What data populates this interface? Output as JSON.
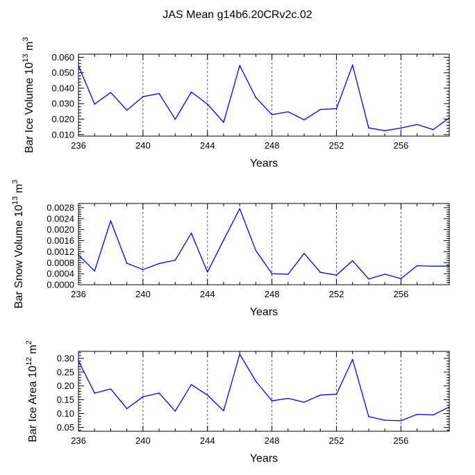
{
  "title": "JAS Mean g14b6.20CRv2c.02",
  "colors": {
    "line": "#0000ff",
    "axis": "#000000",
    "grid": "#555555"
  },
  "chart_data": [
    {
      "type": "line",
      "ylabel": "Bar Ice Volume 10",
      "ylabel_exp": "13",
      "ylabel_unit": " m",
      "ylabel_unit_exp": "3",
      "xlabel": "Years",
      "xlim": [
        236,
        259
      ],
      "ylim": [
        0.009,
        0.062
      ],
      "xticks": [
        "236",
        "240",
        "244",
        "248",
        "252",
        "256"
      ],
      "yticks": [
        "0.010",
        "0.020",
        "0.030",
        "0.040",
        "0.050",
        "0.060"
      ],
      "grid": "vertical dashed at major x ticks",
      "series": [
        {
          "name": "Bar Ice Volume",
          "x": [
            236,
            237,
            238,
            239,
            240,
            241,
            242,
            243,
            244,
            245,
            246,
            247,
            248,
            249,
            250,
            251,
            252,
            253,
            254,
            255,
            256,
            257,
            258,
            259
          ],
          "values": [
            0.0545,
            0.0297,
            0.0372,
            0.0258,
            0.0345,
            0.0366,
            0.0199,
            0.0375,
            0.0297,
            0.0179,
            0.0547,
            0.0339,
            0.0229,
            0.0247,
            0.0195,
            0.0262,
            0.0268,
            0.055,
            0.0143,
            0.0125,
            0.0142,
            0.0165,
            0.0132,
            0.0208
          ]
        }
      ]
    },
    {
      "type": "line",
      "ylabel": "Bar Snow Volume 10",
      "ylabel_exp": "13",
      "ylabel_unit": " m",
      "ylabel_unit_exp": "3",
      "xlabel": "Years",
      "xlim": [
        236,
        259
      ],
      "ylim": [
        0.0,
        0.00295
      ],
      "xticks": [
        "236",
        "240",
        "244",
        "248",
        "252",
        "256"
      ],
      "yticks": [
        "0.0000",
        "0.0004",
        "0.0008",
        "0.0012",
        "0.0016",
        "0.0020",
        "0.0024",
        "0.0028"
      ],
      "grid": "vertical dashed at major x ticks",
      "series": [
        {
          "name": "Bar Snow Volume",
          "x": [
            236,
            237,
            238,
            239,
            240,
            241,
            242,
            243,
            244,
            245,
            246,
            247,
            248,
            249,
            250,
            251,
            252,
            253,
            254,
            255,
            256,
            257,
            258,
            259
          ],
          "values": [
            0.00108,
            0.0005,
            0.00232,
            0.00078,
            0.00055,
            0.00077,
            0.00089,
            0.00187,
            0.00046,
            0.00162,
            0.00276,
            0.00124,
            0.0004,
            0.00038,
            0.00114,
            0.00045,
            0.00035,
            0.00087,
            0.00021,
            0.00038,
            0.00022,
            0.00069,
            0.00067,
            0.00068
          ]
        }
      ]
    },
    {
      "type": "line",
      "ylabel": "Bar Ice Area 10",
      "ylabel_exp": "12",
      "ylabel_unit": " m",
      "ylabel_unit_exp": "2",
      "xlabel": "Years",
      "xlim": [
        236,
        259
      ],
      "ylim": [
        0.036,
        0.325
      ],
      "xticks": [
        "236",
        "240",
        "244",
        "248",
        "252",
        "256"
      ],
      "yticks": [
        "0.05",
        "0.10",
        "0.15",
        "0.20",
        "0.25",
        "0.30"
      ],
      "grid": "vertical dashed at major x ticks",
      "series": [
        {
          "name": "Bar Ice Area",
          "x": [
            236,
            237,
            238,
            239,
            240,
            241,
            242,
            243,
            244,
            245,
            246,
            247,
            248,
            249,
            250,
            251,
            252,
            253,
            254,
            255,
            256,
            257,
            258,
            259
          ],
          "values": [
            0.291,
            0.174,
            0.189,
            0.118,
            0.161,
            0.174,
            0.109,
            0.205,
            0.167,
            0.11,
            0.315,
            0.217,
            0.146,
            0.155,
            0.141,
            0.167,
            0.17,
            0.296,
            0.089,
            0.076,
            0.074,
            0.097,
            0.095,
            0.124
          ]
        }
      ]
    }
  ]
}
